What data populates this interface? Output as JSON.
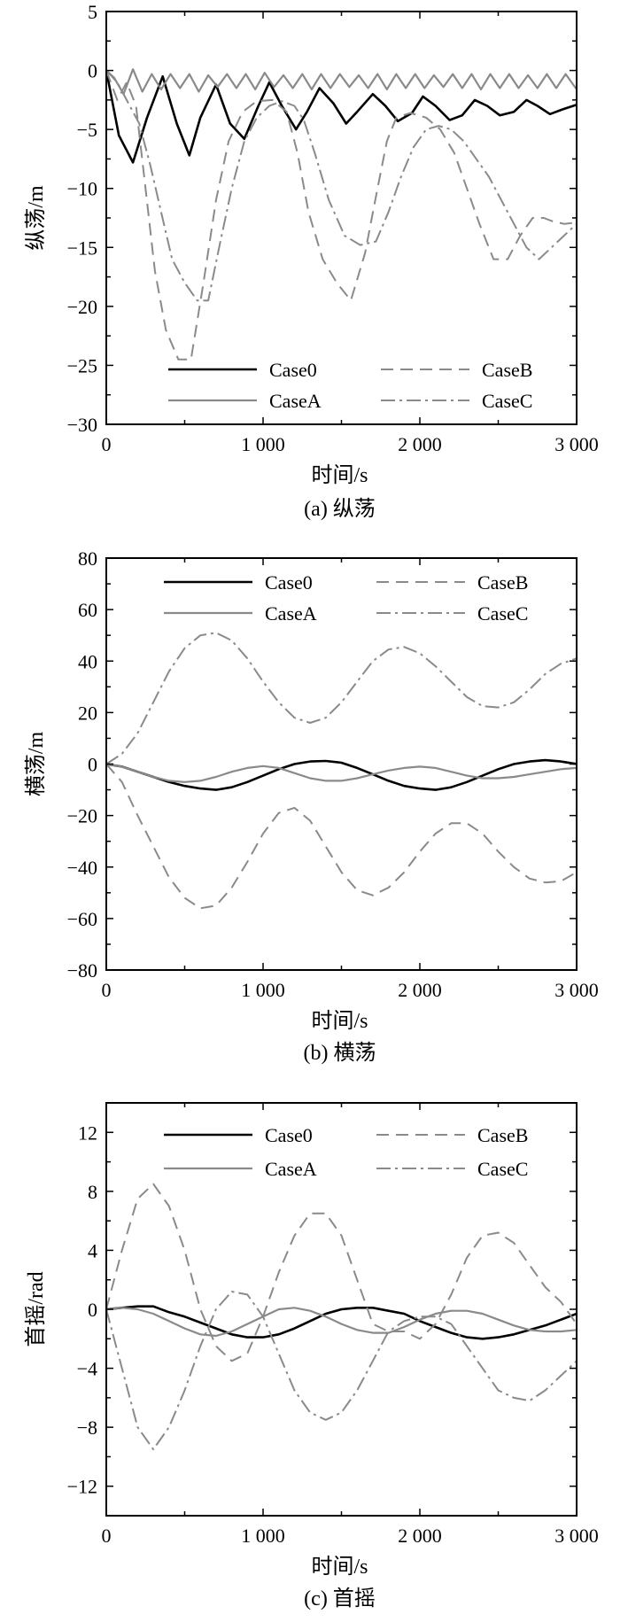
{
  "styles": {
    "Case0": {
      "color": "#000000",
      "dash": "",
      "width": 2.6
    },
    "CaseA": {
      "color": "#8a8a8a",
      "dash": "",
      "width": 2.2
    },
    "CaseB": {
      "color": "#8a8a8a",
      "dash": "14 8",
      "width": 2.0
    },
    "CaseC": {
      "color": "#8a8a8a",
      "dash": "16 5 3 5",
      "width": 2.0
    }
  },
  "chart_data": [
    {
      "type": "line",
      "caption": "(a) 纵荡",
      "xlabel": "时间/s",
      "ylabel": "纵荡/m",
      "xlim": [
        0,
        3000
      ],
      "ylim": [
        -30,
        5
      ],
      "xticks": [
        0,
        1000,
        2000,
        3000
      ],
      "xtick_labels": [
        "0",
        "1 000",
        "2 000",
        "3 000"
      ],
      "yticks": [
        5,
        0,
        -5,
        -10,
        -15,
        -20,
        -25,
        -30
      ],
      "ytick_labels": [
        "5",
        "0",
        "−5",
        "−10",
        "−15",
        "−20",
        "−25",
        "−30"
      ],
      "legend": "bottom",
      "series": [
        {
          "name": "Case0",
          "x": [
            0,
            80,
            170,
            260,
            360,
            450,
            530,
            600,
            700,
            790,
            880,
            970,
            1040,
            1120,
            1210,
            1280,
            1360,
            1450,
            1530,
            1600,
            1700,
            1780,
            1860,
            1950,
            2020,
            2100,
            2190,
            2270,
            2350,
            2430,
            2510,
            2600,
            2680,
            2750,
            2830,
            2910,
            3000
          ],
          "y": [
            0,
            -5.5,
            -7.8,
            -4,
            -0.5,
            -4.5,
            -7.2,
            -4,
            -1.2,
            -4.5,
            -5.8,
            -3,
            -1,
            -3,
            -5,
            -3.5,
            -1.5,
            -2.8,
            -4.5,
            -3.5,
            -2,
            -3,
            -4.3,
            -3.6,
            -2.2,
            -3,
            -4.2,
            -3.8,
            -2.5,
            -3,
            -3.8,
            -3.5,
            -2.5,
            -3,
            -3.7,
            -3.3,
            -2.9
          ]
        },
        {
          "name": "CaseA",
          "x": [
            0,
            50,
            110,
            170,
            230,
            290,
            350,
            410,
            470,
            530,
            590,
            650,
            710,
            770,
            830,
            890,
            950,
            1010,
            1070,
            1130,
            1190,
            1250,
            1310,
            1370,
            1430,
            1490,
            1550,
            1610,
            1670,
            1730,
            1790,
            1850,
            1910,
            1970,
            2030,
            2090,
            2150,
            2210,
            2270,
            2330,
            2390,
            2450,
            2510,
            2570,
            2630,
            2690,
            2750,
            2810,
            2870,
            2930,
            3000
          ],
          "y": [
            0,
            -0.6,
            -2,
            0.1,
            -1.8,
            -0.3,
            -1.6,
            -0.3,
            -1.5,
            -0.3,
            -1.8,
            -0.4,
            -1.4,
            -0.3,
            -1.5,
            -0.3,
            -1.6,
            -0.2,
            -1.4,
            -0.4,
            -1.5,
            -0.3,
            -1.6,
            -0.3,
            -1.5,
            -0.3,
            -1.4,
            -0.4,
            -1.5,
            -0.3,
            -1.6,
            -0.3,
            -1.5,
            -0.3,
            -1.5,
            -0.4,
            -1.4,
            -0.3,
            -1.5,
            -0.3,
            -1.6,
            -0.3,
            -1.5,
            -0.3,
            -1.5,
            -0.4,
            -1.5,
            -0.3,
            -1.5,
            -0.3,
            -1.6
          ]
        },
        {
          "name": "CaseB",
          "x": [
            0,
            70,
            130,
            190,
            250,
            310,
            380,
            460,
            540,
            620,
            700,
            780,
            870,
            960,
            1060,
            1150,
            1220,
            1290,
            1380,
            1470,
            1560,
            1650,
            1730,
            1790,
            1850,
            1940,
            2040,
            2130,
            2220,
            2300,
            2380,
            2470,
            2560,
            2640,
            2720,
            2790,
            2850,
            2920,
            3000
          ],
          "y": [
            0,
            -2.5,
            -1,
            -3,
            -10,
            -17,
            -22,
            -24.5,
            -24.5,
            -18,
            -11,
            -6,
            -3.5,
            -2.6,
            -2.5,
            -3.5,
            -7,
            -12,
            -16,
            -18,
            -19.5,
            -15.5,
            -10,
            -6,
            -4,
            -3.6,
            -4,
            -5,
            -7,
            -10,
            -13,
            -16,
            -16,
            -14,
            -12.5,
            -12.5,
            -12.8,
            -13,
            -12.9
          ]
        },
        {
          "name": "CaseC",
          "x": [
            0,
            70,
            130,
            210,
            280,
            350,
            420,
            500,
            580,
            650,
            720,
            800,
            880,
            960,
            1040,
            1120,
            1200,
            1260,
            1330,
            1420,
            1520,
            1620,
            1720,
            1800,
            1880,
            1960,
            2040,
            2120,
            2200,
            2280,
            2360,
            2440,
            2520,
            2600,
            2680,
            2760,
            2840,
            2920,
            3000
          ],
          "y": [
            0,
            -1,
            -2.5,
            -4.5,
            -8,
            -12,
            -16,
            -18,
            -19.5,
            -19.5,
            -15,
            -10,
            -6,
            -4,
            -3,
            -2.6,
            -3,
            -4.2,
            -7,
            -11,
            -14,
            -14.8,
            -14.5,
            -12,
            -9,
            -6.5,
            -5,
            -4.7,
            -5,
            -6,
            -7.5,
            -9,
            -11,
            -13,
            -15,
            -16,
            -15,
            -14,
            -13
          ]
        }
      ]
    },
    {
      "type": "line",
      "caption": "(b) 横荡",
      "xlabel": "时间/s",
      "ylabel": "横荡/m",
      "xlim": [
        0,
        3000
      ],
      "ylim": [
        -80,
        80
      ],
      "xticks": [
        0,
        1000,
        2000,
        3000
      ],
      "xtick_labels": [
        "0",
        "1 000",
        "2 000",
        "3 000"
      ],
      "yticks": [
        80,
        60,
        40,
        20,
        0,
        -20,
        -40,
        -60,
        -80
      ],
      "ytick_labels": [
        "80",
        "60",
        "40",
        "20",
        "0",
        "−20",
        "−40",
        "−60",
        "−80"
      ],
      "legend": "top",
      "series": [
        {
          "name": "Case0",
          "x": [
            0,
            100,
            200,
            300,
            400,
            500,
            600,
            700,
            800,
            900,
            1000,
            1100,
            1200,
            1300,
            1400,
            1500,
            1600,
            1700,
            1800,
            1900,
            2000,
            2100,
            2200,
            2300,
            2400,
            2500,
            2600,
            2700,
            2800,
            2900,
            3000
          ],
          "y": [
            0,
            -1,
            -3,
            -5,
            -7,
            -8.5,
            -9.5,
            -10,
            -9,
            -7,
            -4.5,
            -2,
            0,
            1,
            1.2,
            0.5,
            -1.5,
            -4,
            -6.5,
            -8.5,
            -9.5,
            -10,
            -9,
            -7,
            -4.5,
            -2,
            0,
            1,
            1.5,
            1,
            0
          ]
        },
        {
          "name": "CaseA",
          "x": [
            0,
            100,
            200,
            300,
            400,
            500,
            600,
            700,
            800,
            900,
            1000,
            1100,
            1200,
            1300,
            1400,
            1500,
            1600,
            1700,
            1800,
            1900,
            2000,
            2100,
            2200,
            2300,
            2400,
            2500,
            2600,
            2700,
            2800,
            2900,
            3000
          ],
          "y": [
            0,
            -1,
            -3,
            -5,
            -6.5,
            -7,
            -6.5,
            -5,
            -3,
            -1.5,
            -0.8,
            -1.5,
            -3.5,
            -5.5,
            -6.5,
            -6.5,
            -5.5,
            -4,
            -2.5,
            -1.5,
            -1,
            -1.5,
            -3,
            -4.5,
            -5.5,
            -5.5,
            -5,
            -4,
            -3,
            -2,
            -1.5
          ]
        },
        {
          "name": "CaseB",
          "x": [
            0,
            100,
            200,
            300,
            400,
            500,
            600,
            700,
            800,
            900,
            1000,
            1100,
            1200,
            1300,
            1400,
            1500,
            1600,
            1700,
            1800,
            1900,
            2000,
            2100,
            2200,
            2300,
            2400,
            2500,
            2600,
            2700,
            2800,
            2900,
            3000
          ],
          "y": [
            0,
            -7,
            -20,
            -32,
            -44,
            -52,
            -56,
            -55,
            -48,
            -38,
            -27,
            -19,
            -17,
            -22,
            -32,
            -42,
            -49,
            -51,
            -48,
            -42,
            -34,
            -27,
            -23,
            -23,
            -27,
            -34,
            -40,
            -44.5,
            -46,
            -45.5,
            -42
          ]
        },
        {
          "name": "CaseC",
          "x": [
            0,
            100,
            200,
            300,
            400,
            500,
            600,
            700,
            800,
            900,
            1000,
            1100,
            1200,
            1300,
            1400,
            1500,
            1600,
            1700,
            1800,
            1900,
            2000,
            2100,
            2200,
            2300,
            2400,
            2500,
            2600,
            2700,
            2800,
            2900,
            3000
          ],
          "y": [
            0,
            4,
            12,
            24,
            36,
            45,
            50,
            51,
            48,
            41,
            32,
            24,
            18,
            16,
            18,
            24,
            32,
            40,
            44.5,
            45.5,
            43,
            38,
            32,
            26,
            22.5,
            22,
            24,
            29,
            35,
            39,
            41
          ]
        }
      ]
    },
    {
      "type": "line",
      "caption": "(c) 首摇",
      "xlabel": "时间/s",
      "ylabel": "首摇/rad",
      "xlim": [
        0,
        3000
      ],
      "ylim": [
        -14,
        14
      ],
      "xticks": [
        0,
        1000,
        2000,
        3000
      ],
      "xtick_labels": [
        "0",
        "1 000",
        "2 000",
        "3 000"
      ],
      "yticks": [
        12,
        8,
        4,
        0,
        -4,
        -8,
        -12
      ],
      "ytick_labels": [
        "12",
        "8",
        "4",
        "0",
        "−4",
        "−8",
        "−12"
      ],
      "legend": "top",
      "series": [
        {
          "name": "Case0",
          "x": [
            0,
            100,
            200,
            300,
            400,
            500,
            600,
            700,
            800,
            900,
            1000,
            1100,
            1200,
            1300,
            1400,
            1500,
            1600,
            1700,
            1800,
            1900,
            2000,
            2100,
            2200,
            2300,
            2400,
            2500,
            2600,
            2700,
            2800,
            2900,
            3000
          ],
          "y": [
            0,
            0.1,
            0.2,
            0.2,
            -0.2,
            -0.5,
            -0.9,
            -1.3,
            -1.7,
            -1.9,
            -1.9,
            -1.7,
            -1.3,
            -0.8,
            -0.3,
            0,
            0.1,
            0.1,
            -0.1,
            -0.3,
            -0.8,
            -1.2,
            -1.6,
            -1.9,
            -2,
            -1.9,
            -1.7,
            -1.4,
            -1.1,
            -0.7,
            -0.3
          ]
        },
        {
          "name": "CaseA",
          "x": [
            0,
            100,
            200,
            300,
            400,
            500,
            600,
            700,
            800,
            900,
            1000,
            1100,
            1200,
            1300,
            1400,
            1500,
            1600,
            1700,
            1800,
            1900,
            2000,
            2100,
            2200,
            2300,
            2400,
            2500,
            2600,
            2700,
            2800,
            2900,
            3000
          ],
          "y": [
            0,
            0.1,
            0,
            -0.3,
            -0.8,
            -1.3,
            -1.7,
            -1.8,
            -1.5,
            -1,
            -0.5,
            0,
            0.1,
            -0.1,
            -0.5,
            -1,
            -1.4,
            -1.6,
            -1.6,
            -1.2,
            -0.7,
            -0.3,
            -0.1,
            -0.1,
            -0.3,
            -0.7,
            -1.1,
            -1.4,
            -1.5,
            -1.5,
            -1.4
          ]
        },
        {
          "name": "CaseB",
          "x": [
            0,
            100,
            200,
            300,
            400,
            500,
            600,
            700,
            800,
            900,
            1000,
            1100,
            1200,
            1300,
            1400,
            1500,
            1600,
            1700,
            1800,
            1900,
            2000,
            2100,
            2200,
            2300,
            2400,
            2500,
            2600,
            2700,
            2800,
            2900,
            3000
          ],
          "y": [
            0,
            4,
            7.5,
            8.5,
            7,
            4,
            0,
            -2.5,
            -3.5,
            -3,
            -0.5,
            2.5,
            5,
            6.5,
            6.5,
            5,
            2,
            -1,
            -1.5,
            -1.5,
            -2,
            -1,
            1,
            3.5,
            5,
            5.2,
            4.5,
            3,
            1.5,
            0.5,
            -1
          ]
        },
        {
          "name": "CaseC",
          "x": [
            0,
            100,
            200,
            300,
            400,
            500,
            600,
            700,
            800,
            900,
            1000,
            1100,
            1200,
            1300,
            1400,
            1500,
            1600,
            1700,
            1800,
            1900,
            2000,
            2100,
            2200,
            2300,
            2400,
            2500,
            2600,
            2700,
            2800,
            2900,
            3000
          ],
          "y": [
            0,
            -4,
            -8,
            -9.5,
            -8,
            -5.5,
            -2.5,
            0,
            1.2,
            1,
            -0.5,
            -3,
            -5.5,
            -7,
            -7.5,
            -7,
            -5.5,
            -3.5,
            -1.5,
            -0.8,
            -0.5,
            -0.5,
            -1,
            -2.5,
            -4,
            -5.5,
            -6,
            -6.2,
            -5.5,
            -4.5,
            -3.5
          ]
        }
      ]
    }
  ]
}
